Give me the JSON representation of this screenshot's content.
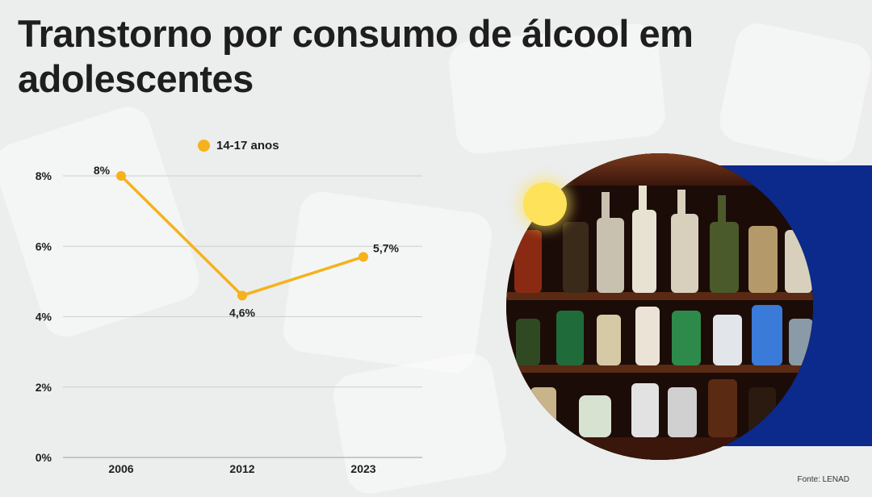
{
  "title": "Transtorno por consumo de álcool em adolescentes",
  "legend": {
    "label": "14-17 anos"
  },
  "source": "Fonte: LENAD",
  "colors": {
    "series": "#f5b21b",
    "panel": "#0b2a8c",
    "text": "#1e1e1e",
    "grid": "#cfcfcf"
  },
  "chart_data": {
    "type": "line",
    "title": "Transtorno por consumo de álcool em adolescentes",
    "xlabel": "",
    "ylabel": "",
    "categories": [
      "2006",
      "2012",
      "2023"
    ],
    "series": [
      {
        "name": "14-17 anos",
        "values": [
          8,
          4.6,
          5.7
        ],
        "labels": [
          "8%",
          "4,6%",
          "5,7%"
        ]
      }
    ],
    "ylim": [
      0,
      8
    ],
    "yticks": [
      0,
      2,
      4,
      6,
      8
    ],
    "ytick_labels": [
      "0%",
      "2%",
      "4%",
      "6%",
      "8%"
    ],
    "grid": true,
    "legend_position": "top"
  }
}
